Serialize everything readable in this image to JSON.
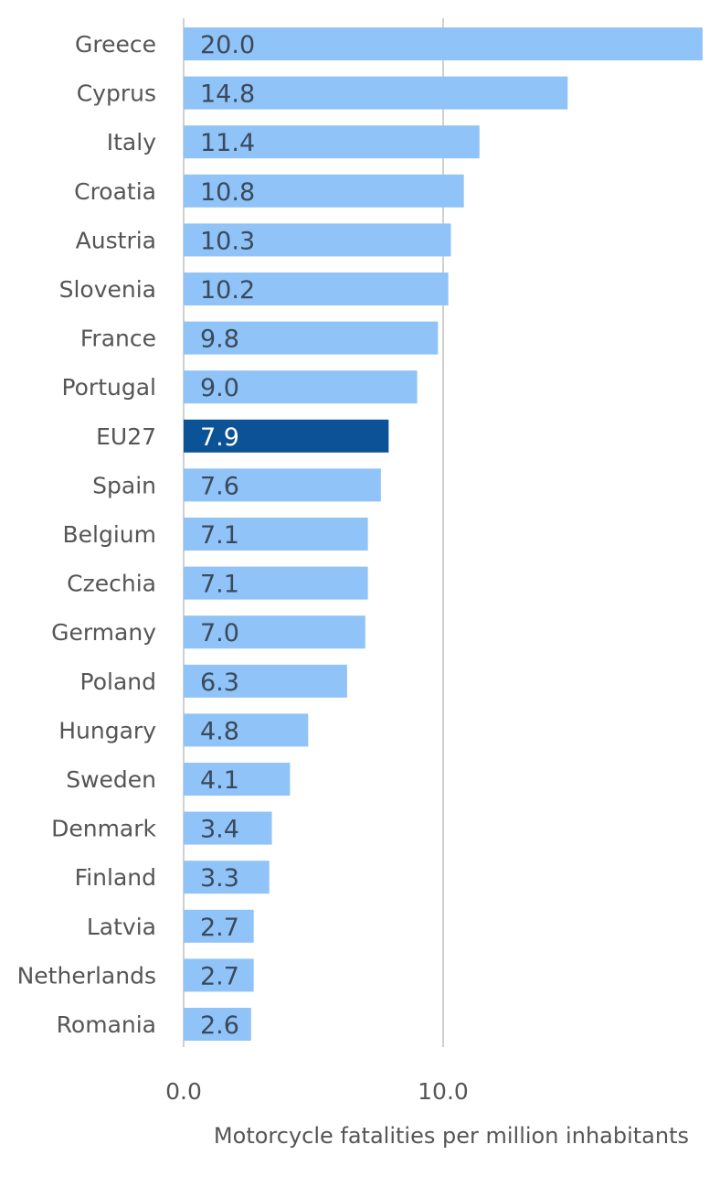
{
  "chart_data": {
    "type": "bar",
    "orientation": "horizontal",
    "categories": [
      "Greece",
      "Cyprus",
      "Italy",
      "Croatia",
      "Austria",
      "Slovenia",
      "France",
      "Portugal",
      "EU27",
      "Spain",
      "Belgium",
      "Czechia",
      "Germany",
      "Poland",
      "Hungary",
      "Sweden",
      "Denmark",
      "Finland",
      "Latvia",
      "Netherlands",
      "Romania"
    ],
    "values": [
      20.0,
      14.8,
      11.4,
      10.8,
      10.3,
      10.2,
      9.8,
      9.0,
      7.9,
      7.6,
      7.1,
      7.1,
      7.0,
      6.3,
      4.8,
      4.1,
      3.4,
      3.3,
      2.7,
      2.7,
      2.6
    ],
    "value_labels": [
      "20.0",
      "14.8",
      "11.4",
      "10.8",
      "10.3",
      "10.2",
      "9.8",
      "9.0",
      "7.9",
      "7.6",
      "7.1",
      "7.1",
      "7.0",
      "6.3",
      "4.8",
      "4.1",
      "3.4",
      "3.3",
      "2.7",
      "2.7",
      "2.6"
    ],
    "highlight_category": "EU27",
    "colors": {
      "bar": "#90c3f7",
      "highlight": "#0b5296",
      "label_dark": "#3a4a5c",
      "label_light": "#ffffff",
      "grid": "#d0d0d0"
    },
    "xlabel": "Motorcycle fatalities per million inhabitants",
    "xticks": [
      "0.0",
      "10.0"
    ],
    "xtick_values": [
      0,
      10
    ],
    "grid": true
  }
}
